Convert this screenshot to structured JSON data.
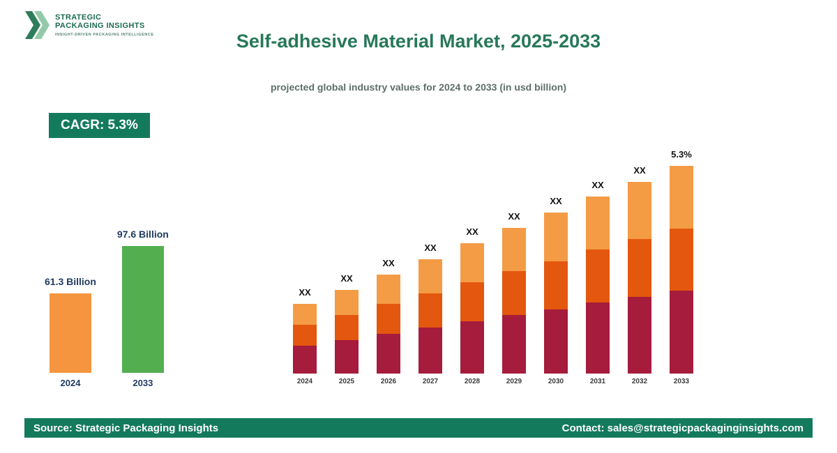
{
  "header": {
    "logo": {
      "line1": "STRATEGIC",
      "line2": "PACKAGING INSIGHTS",
      "tagline": "INSIGHT-DRIVEN PACKAGING INTELLIGENCE"
    },
    "title": "Self-adhesive Material Market, 2025-2033",
    "subtitle": "projected global industry values for 2024 to 2033 (in usd billion)"
  },
  "cagr_badge": "CAGR: 5.3%",
  "footer": {
    "source": "Source: Strategic Packaging Insights",
    "contact": "Contact: sales@strategicpackaginginsights.com"
  },
  "colors": {
    "brand_green": "#147A5C",
    "title_green": "#27785A",
    "subtitle_gray": "#5E6E69",
    "bar_orange": "#F5953F",
    "bar_green": "#53AE50",
    "stack_maroon": "#A51C3C",
    "stack_dark_orange": "#E4570E",
    "stack_light_orange": "#F49B45",
    "label_navy": "#1F3A5F"
  },
  "chart_data": [
    {
      "type": "bar",
      "title": "2024 vs 2033 market size comparison",
      "categories": [
        "2024",
        "2033"
      ],
      "values": [
        61.3,
        97.6
      ],
      "unit": "USD Billion",
      "value_labels": [
        "61.3 Billion",
        "97.6 Billion"
      ],
      "bar_colors": [
        "#F5953F",
        "#53AE50"
      ],
      "legend": "none",
      "grid": false
    },
    {
      "type": "stacked-bar",
      "title": "Projected values 2024-2033 (totals unlabeled, shown as XX)",
      "categories": [
        "2024",
        "2025",
        "2026",
        "2027",
        "2028",
        "2029",
        "2030",
        "2031",
        "2032",
        "2033"
      ],
      "bar_labels": [
        "XX",
        "XX",
        "XX",
        "XX",
        "XX",
        "XX",
        "XX",
        "XX",
        "XX",
        "5.3%"
      ],
      "values_unit": "relative height units estimated from image (no numeric axis shown)",
      "series": [
        {
          "name": "bottom",
          "color": "#A51C3C",
          "values": [
            40,
            48,
            57,
            66,
            75,
            84,
            92,
            102,
            110,
            119
          ]
        },
        {
          "name": "middle",
          "color": "#E4570E",
          "values": [
            30,
            36,
            43,
            49,
            56,
            63,
            69,
            76,
            83,
            89
          ]
        },
        {
          "name": "top",
          "color": "#F49B45",
          "values": [
            30,
            36,
            42,
            49,
            56,
            62,
            70,
            76,
            82,
            90
          ]
        }
      ],
      "legend": "none",
      "grid": false
    }
  ]
}
